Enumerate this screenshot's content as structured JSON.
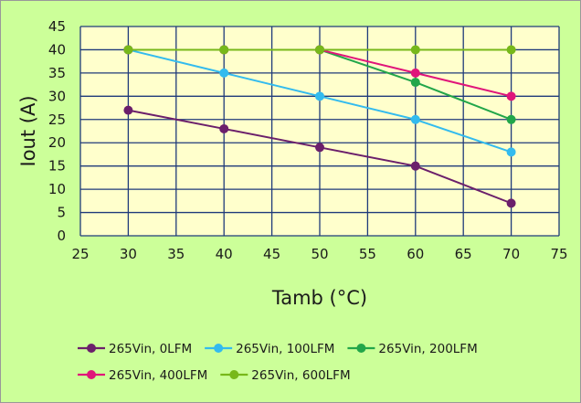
{
  "chart_data": {
    "type": "line",
    "title": "",
    "xlabel": "Tamb (°C)",
    "ylabel": "Iout (A)",
    "xlim": [
      25,
      75
    ],
    "ylim": [
      0,
      45
    ],
    "xticks": [
      25,
      30,
      35,
      40,
      45,
      50,
      55,
      60,
      65,
      70,
      75
    ],
    "yticks": [
      0,
      5,
      10,
      15,
      20,
      25,
      30,
      35,
      40,
      45
    ],
    "grid": true,
    "legend_position": "bottom",
    "colors": {
      "background": "#ccff99",
      "plot_area": "#ffffcc",
      "grid": "#1f3a7a",
      "border": "#999999"
    },
    "series": [
      {
        "name": "265Vin, 0LFM",
        "color": "#6b1f6b",
        "x": [
          30,
          40,
          50,
          60,
          70
        ],
        "y": [
          27,
          23,
          19,
          15,
          7
        ]
      },
      {
        "name": "265Vin, 100LFM",
        "color": "#33bbee",
        "x": [
          30,
          40,
          50,
          60,
          70
        ],
        "y": [
          40,
          35,
          30,
          25,
          18
        ]
      },
      {
        "name": "265Vin, 200LFM",
        "color": "#22a64a",
        "x": [
          30,
          40,
          50,
          60,
          70
        ],
        "y": [
          40,
          40,
          40,
          33,
          25
        ]
      },
      {
        "name": "265Vin, 400LFM",
        "color": "#e0157a",
        "x": [
          30,
          40,
          50,
          60,
          70
        ],
        "y": [
          40,
          40,
          40,
          35,
          30
        ]
      },
      {
        "name": "265Vin, 600LFM",
        "color": "#77b81a",
        "x": [
          30,
          40,
          50,
          60,
          70
        ],
        "y": [
          40,
          40,
          40,
          40,
          40
        ]
      }
    ]
  }
}
